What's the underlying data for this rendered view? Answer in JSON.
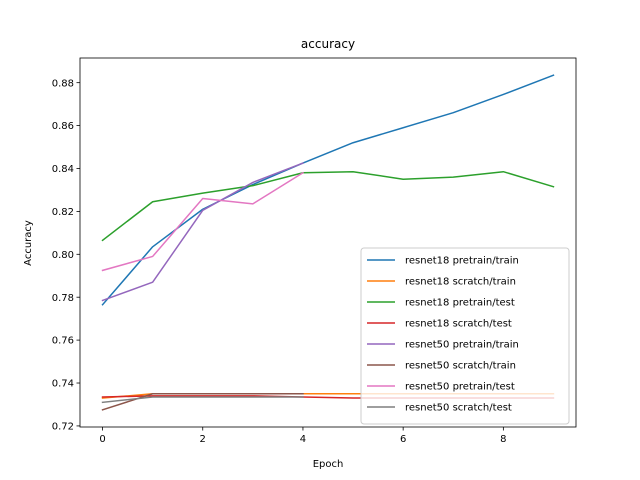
{
  "chart_data": {
    "type": "line",
    "title": "accuracy",
    "xlabel": "Epoch",
    "ylabel": "Accuracy",
    "xlim": [
      -0.45,
      9.45
    ],
    "ylim": [
      0.7195,
      0.8915
    ],
    "xticks": [
      0,
      2,
      4,
      6,
      8
    ],
    "yticks": [
      0.72,
      0.74,
      0.76,
      0.78,
      0.8,
      0.82,
      0.84,
      0.86,
      0.88
    ],
    "grid": false,
    "legend_position": "lower-right",
    "series": [
      {
        "name": "resnet18 pretrain/train",
        "color": "#1f77b4",
        "x": [
          0,
          1,
          2,
          3,
          4,
          5,
          6,
          7,
          8,
          9
        ],
        "y": [
          0.7765,
          0.8035,
          0.821,
          0.8325,
          0.8425,
          0.852,
          0.859,
          0.866,
          0.8745,
          0.8835
        ]
      },
      {
        "name": "resnet18 scratch/train",
        "color": "#ff7f0e",
        "x": [
          0,
          1,
          2,
          3,
          4,
          5,
          6,
          7,
          8,
          9
        ],
        "y": [
          0.733,
          0.735,
          0.735,
          0.735,
          0.735,
          0.735,
          0.735,
          0.735,
          0.735,
          0.735
        ]
      },
      {
        "name": "resnet18 pretrain/test",
        "color": "#2ca02c",
        "x": [
          0,
          1,
          2,
          3,
          4,
          5,
          6,
          7,
          8,
          9
        ],
        "y": [
          0.8065,
          0.8245,
          0.8285,
          0.832,
          0.838,
          0.8385,
          0.835,
          0.836,
          0.8385,
          0.8315
        ]
      },
      {
        "name": "resnet18 scratch/test",
        "color": "#d62728",
        "x": [
          0,
          1,
          2,
          3,
          4,
          5,
          6,
          7,
          8,
          9
        ],
        "y": [
          0.7335,
          0.734,
          0.734,
          0.734,
          0.7335,
          0.733,
          0.733,
          0.733,
          0.733,
          0.733
        ]
      },
      {
        "name": "resnet50 pretrain/train",
        "color": "#9467bd",
        "x": [
          0,
          1,
          2,
          3,
          4
        ],
        "y": [
          0.7785,
          0.787,
          0.8205,
          0.8335,
          0.8425
        ]
      },
      {
        "name": "resnet50 scratch/train",
        "color": "#8c564b",
        "x": [
          0,
          1,
          2,
          3,
          4
        ],
        "y": [
          0.7275,
          0.735,
          0.735,
          0.735,
          0.735
        ]
      },
      {
        "name": "resnet50 pretrain/test",
        "color": "#e377c2",
        "x": [
          0,
          1,
          2,
          3,
          4
        ],
        "y": [
          0.7925,
          0.799,
          0.826,
          0.8235,
          0.838
        ]
      },
      {
        "name": "resnet50 scratch/test",
        "color": "#7f7f7f",
        "x": [
          0,
          1,
          2,
          3,
          4
        ],
        "y": [
          0.731,
          0.7335,
          0.7335,
          0.7335,
          0.7335
        ]
      }
    ]
  }
}
